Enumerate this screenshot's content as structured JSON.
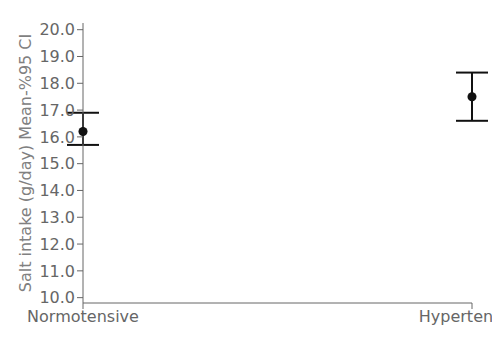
{
  "chart_data": {
    "type": "scatter",
    "categories": [
      "Normotensive",
      "Hypertensive"
    ],
    "values": [
      16.2,
      17.5
    ],
    "ci_lower": [
      15.7,
      16.6
    ],
    "ci_upper": [
      16.9,
      18.4
    ],
    "color": "#111111",
    "ylabel": "Salt intake (g/day) Mean-%95 CI",
    "ylim": [
      9.8,
      20.25
    ],
    "yticks": [
      {
        "value": 10.0,
        "label": "10.0"
      },
      {
        "value": 11.0,
        "label": "11.0"
      },
      {
        "value": 12.0,
        "label": "12.0"
      },
      {
        "value": 13.0,
        "label": "13.0"
      },
      {
        "value": 14.0,
        "label": "14.0"
      },
      {
        "value": 15.0,
        "label": "15.0"
      },
      {
        "value": 16.0,
        "label": "16.0"
      },
      {
        "value": 17.0,
        "label": "17.0"
      },
      {
        "value": 18.0,
        "label": "18.0"
      },
      {
        "value": 19.0,
        "label": "19.0"
      },
      {
        "value": 20.0,
        "label": "20.0"
      }
    ],
    "grid": false
  }
}
